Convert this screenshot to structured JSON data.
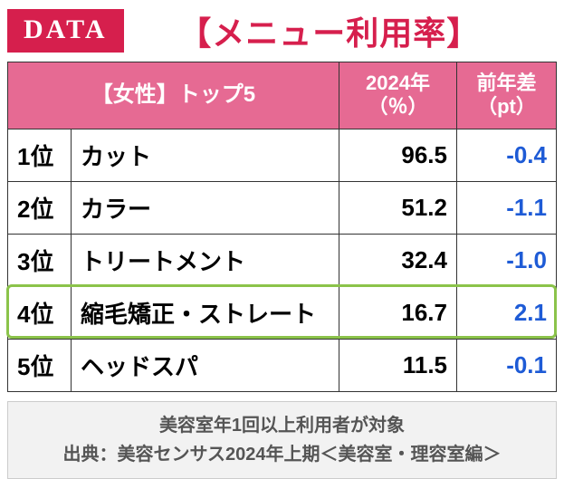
{
  "badge": "DATA",
  "title": "【メニュー利用率】",
  "header": {
    "category": "【女性】トップ5",
    "year_col": "2024年\n（％）",
    "diff_col": "前年差\n（pt）"
  },
  "rows": [
    {
      "rank": "1位",
      "name": "カット",
      "value": "96.5",
      "diff": "-0.4",
      "diff_sign": "neg"
    },
    {
      "rank": "2位",
      "name": "カラー",
      "value": "51.2",
      "diff": "-1.1",
      "diff_sign": "neg"
    },
    {
      "rank": "3位",
      "name": "トリートメント",
      "value": "32.4",
      "diff": "-1.0",
      "diff_sign": "neg"
    },
    {
      "rank": "4位",
      "name": "縮毛矯正・ストレート",
      "value": "16.7",
      "diff": "2.1",
      "diff_sign": "pos",
      "highlight": true
    },
    {
      "rank": "5位",
      "name": "ヘッドスパ",
      "value": "11.5",
      "diff": "-0.1",
      "diff_sign": "neg"
    }
  ],
  "footnote_line1": "美容室年1回以上利用者が対象",
  "footnote_line2": "出典：美容センサス2024年上期＜美容室・理容室編＞",
  "colors": {
    "brand": "#d61f4d",
    "header_bg": "#e66a93",
    "highlight_border": "#8bc34a",
    "diff_color": "#1e5bd6"
  }
}
